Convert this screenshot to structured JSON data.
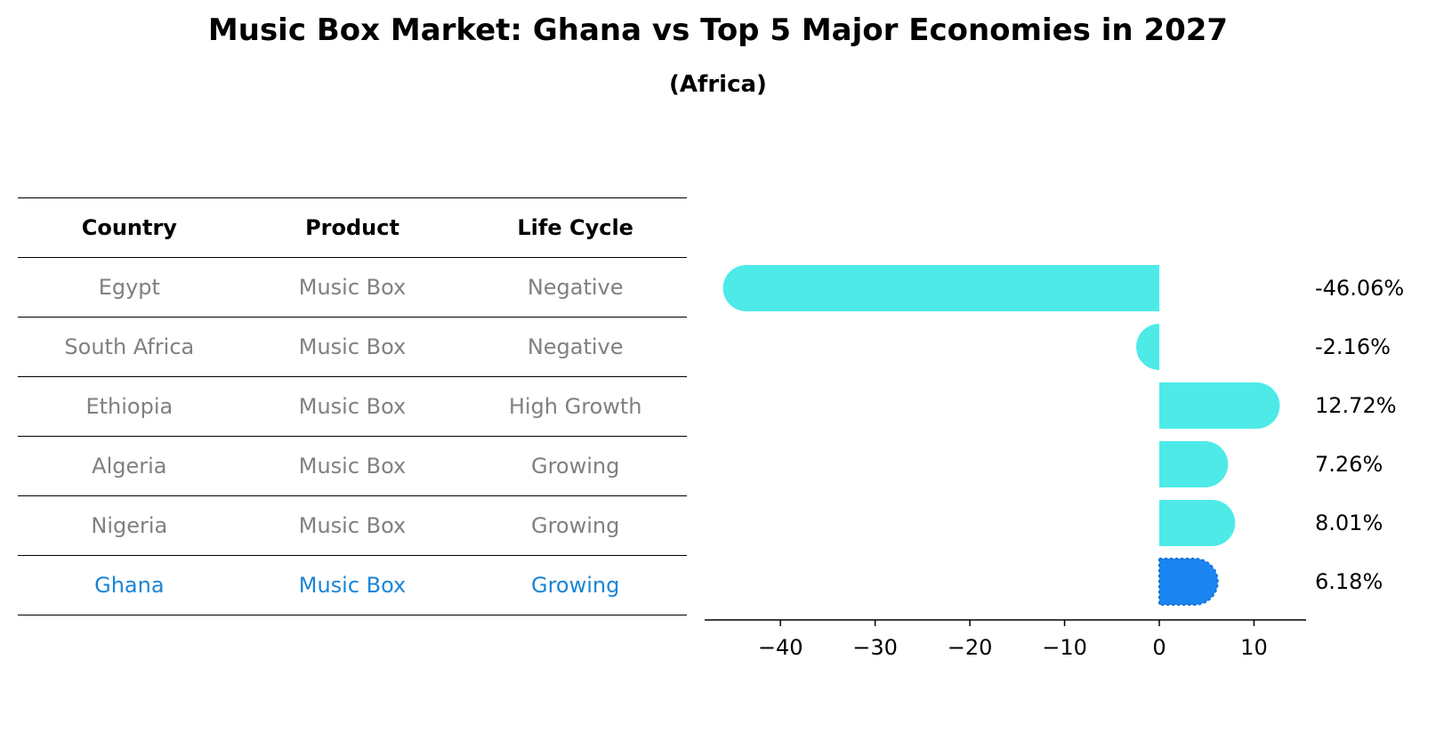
{
  "title": "Music Box Market: Ghana vs Top 5 Major Economies in 2027",
  "subtitle": "(Africa)",
  "table": {
    "headers": [
      "Country",
      "Product",
      "Life Cycle"
    ],
    "rows": [
      [
        "Egypt",
        "Music Box",
        "Negative"
      ],
      [
        "South Africa",
        "Music Box",
        "Negative"
      ],
      [
        "Ethiopia",
        "Music Box",
        "High Growth"
      ],
      [
        "Algeria",
        "Music Box",
        "Growing"
      ],
      [
        "Nigeria",
        "Music Box",
        "Growing"
      ],
      [
        "Ghana",
        "Music Box",
        "Growing"
      ]
    ],
    "highlight_row": 5
  },
  "colors": {
    "bar": "#4deae8",
    "highlight_bar": "#1a85f0",
    "highlight_text": "#1a85d6",
    "muted_text": "#808080"
  },
  "chart_data": {
    "type": "bar",
    "orientation": "horizontal",
    "categories": [
      "Egypt",
      "South Africa",
      "Ethiopia",
      "Algeria",
      "Nigeria",
      "Ghana"
    ],
    "values": [
      -46.06,
      -2.16,
      12.72,
      7.26,
      8.01,
      6.18
    ],
    "value_labels": [
      "-46.06%",
      "-2.16%",
      "12.72%",
      "7.26%",
      "8.01%",
      "6.18%"
    ],
    "highlight_index": 5,
    "xlim": [
      -48,
      15.5
    ],
    "xticks": [
      -40,
      -30,
      -20,
      -10,
      0,
      10
    ],
    "xtick_labels": [
      "−40",
      "−30",
      "−20",
      "−10",
      "0",
      "10"
    ],
    "xlabel": "",
    "ylabel": "",
    "grid": false
  }
}
